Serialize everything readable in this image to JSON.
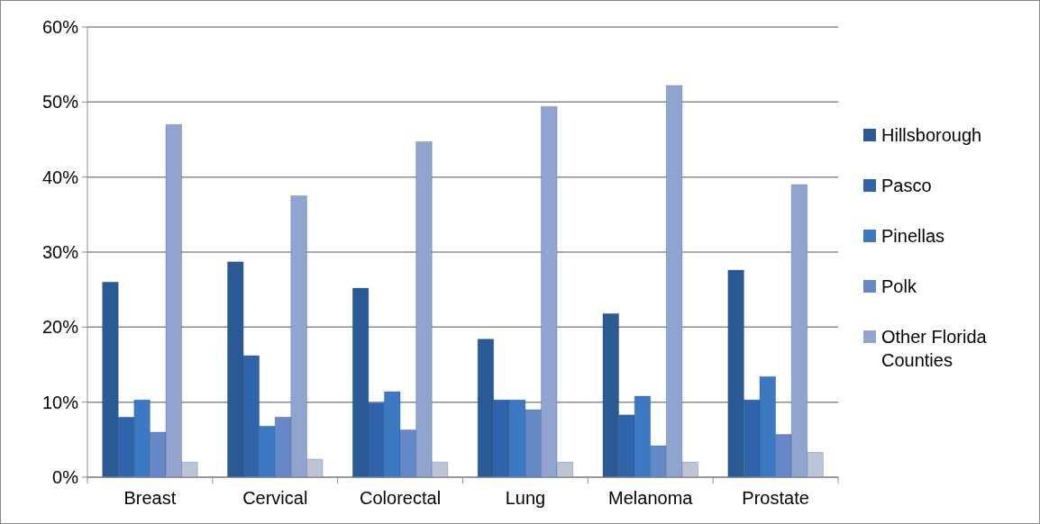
{
  "chart_data": {
    "type": "bar",
    "categories": [
      "Breast",
      "Cervical",
      "Colorectal",
      "Lung",
      "Melanoma",
      "Prostate"
    ],
    "series": [
      {
        "name": "Hillsborough",
        "color": "#2a5a94",
        "values": [
          26,
          28.7,
          25.2,
          18.4,
          21.8,
          27.6
        ]
      },
      {
        "name": "Pasco",
        "color": "#2f64aa",
        "values": [
          8,
          16.2,
          9.9,
          10.3,
          8.3,
          10.3
        ]
      },
      {
        "name": "Pinellas",
        "color": "#3b79c3",
        "values": [
          10.3,
          6.8,
          11.4,
          10.3,
          10.8,
          13.4
        ]
      },
      {
        "name": "Polk",
        "color": "#6688c6",
        "values": [
          6,
          8,
          6.3,
          9,
          4.2,
          5.7
        ]
      },
      {
        "name": "Other Florida Counties",
        "color": "#8fa4cf",
        "values": [
          47,
          37.5,
          44.7,
          49.4,
          52.2,
          39
        ]
      },
      {
        "color": "#bcc4d8",
        "values": [
          2,
          2.4,
          2,
          2,
          2,
          3.3
        ]
      }
    ],
    "ylim": [
      0,
      60
    ],
    "yticks": [
      {
        "value": 0,
        "label": "0%"
      },
      {
        "value": 10,
        "label": "10%"
      },
      {
        "value": 20,
        "label": "20%"
      },
      {
        "value": 30,
        "label": "30%"
      },
      {
        "value": 40,
        "label": "40%"
      },
      {
        "value": 50,
        "label": "50%"
      },
      {
        "value": 60,
        "label": "60%"
      }
    ],
    "grid": "y",
    "legend": "right"
  }
}
